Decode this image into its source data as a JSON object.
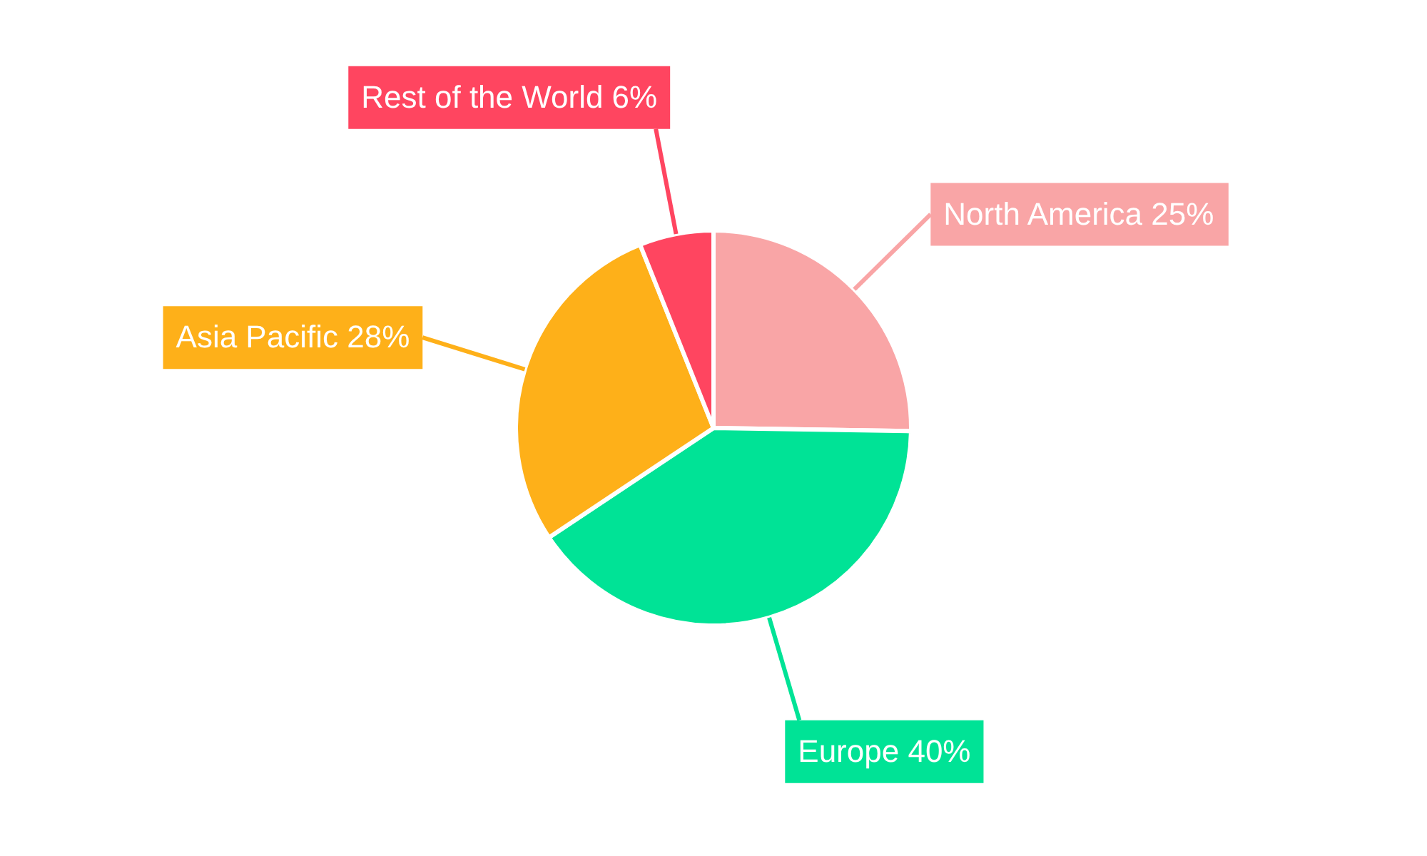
{
  "chart_data": {
    "type": "pie",
    "categories": [
      "North America",
      "Europe",
      "Asia Pacific",
      "Rest of the World"
    ],
    "values": [
      25,
      40,
      28,
      6
    ],
    "value_labels": [
      "25%",
      "40%",
      "28%",
      "6%"
    ],
    "colors": [
      "#f9a5a6",
      "#00e396",
      "#feb019",
      "#ff4560"
    ],
    "legend": false
  }
}
